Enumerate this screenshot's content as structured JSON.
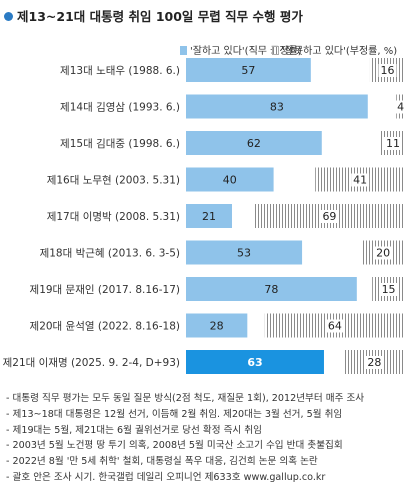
{
  "title": "제13~21대 대통령 취임 100일 무렵 직무 수행 평가",
  "legend": {
    "positive": "'잘하고 있다'(직무 긍정률)",
    "negative": "'잘못하고 있다'(부정률, %)"
  },
  "colors": {
    "positive": "#8fc3ea",
    "highlight": "#1a93e0",
    "negative_stripe": "#8a8a8a",
    "text": "#333333"
  },
  "chart_data": {
    "type": "bar",
    "orientation": "horizontal",
    "stacked": "diverging",
    "title": "제13~21대 대통령 취임 100일 무렵 직무 수행 평가",
    "categories": [
      "제13대 노태우 (1988. 6.)",
      "제14대 김영삼 (1993. 6.)",
      "제15대 김대중 (1998. 6.)",
      "제16대 노무현 (2003. 5.31)",
      "제17대 이명박 (2008. 5.31)",
      "제18대 박근혜 (2013. 6. 3-5)",
      "제19대 문재인 (2017. 8.16-17)",
      "제20대 윤석열 (2022. 8.16-18)",
      "제21대 이재명 (2025. 9. 2-4, D+93)"
    ],
    "series": [
      {
        "name": "'잘하고 있다'(직무 긍정률)",
        "values": [
          57,
          83,
          62,
          40,
          21,
          53,
          78,
          28,
          63
        ]
      },
      {
        "name": "'잘못하고 있다'(부정률, %)",
        "values": [
          16,
          4,
          11,
          41,
          69,
          20,
          15,
          64,
          28
        ]
      }
    ],
    "highlight_index": 8,
    "xlim": [
      0,
      100
    ],
    "legend_position": "top-right",
    "grid": false
  },
  "notes": [
    "- 대통령 직무 평가는 모두 동일 질문 방식(2점 척도, 재질문 1회), 2012년부터 매주 조사",
    "- 제13~18대 대통령은 12월 선거, 이듬해 2월 취임. 제20대는 3월 선거, 5월 취임",
    "- 제19대는 5월, 제21대는 6월 궐위선거로 당선 확정 즉시 취임",
    "- 2003년 5월 노건평 땅 투기 의혹, 2008년 5월 미국산 소고기 수입 반대 촛불집회",
    "- 2022년 8월 '만 5세 취학' 철회, 대통령실 폭우 대응, 김건희 논문 의혹 논란",
    "- 괄호 안은 조사 시기. 한국갤럽 데일리 오피니언 제633호 www.gallup.co.kr"
  ]
}
